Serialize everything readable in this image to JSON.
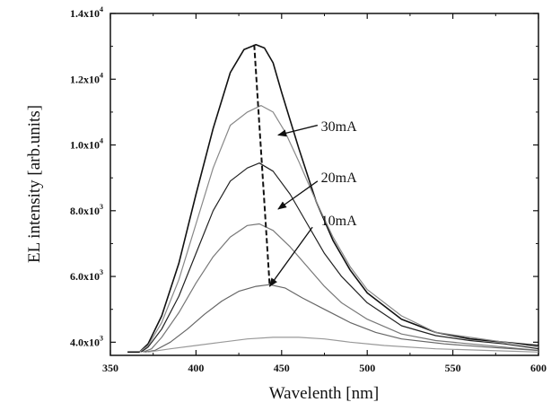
{
  "chart_data": {
    "type": "line",
    "xlabel": "Wavelenth [nm]",
    "ylabel": "EL intensity [arb.units]",
    "xlim": [
      350,
      600
    ],
    "ylim": [
      3600,
      14000
    ],
    "x_ticks": [
      350,
      400,
      450,
      500,
      550,
      600
    ],
    "y_ticks": [
      {
        "value": 4000,
        "mant": "4.0x10",
        "exp": "3"
      },
      {
        "value": 6000,
        "mant": "6.0x10",
        "exp": "3"
      },
      {
        "value": 8000,
        "mant": "8.0x10",
        "exp": "3"
      },
      {
        "value": 10000,
        "mant": "1.0x10",
        "exp": "4"
      },
      {
        "value": 12000,
        "mant": "1.2x10",
        "exp": "4"
      },
      {
        "value": 14000,
        "mant": "1.4x10",
        "exp": "4"
      }
    ],
    "grid": false,
    "series": [
      {
        "color": "#111111",
        "values": [
          [
            360,
            3700
          ],
          [
            367,
            3700
          ],
          [
            372,
            3950
          ],
          [
            380,
            4800
          ],
          [
            390,
            6400
          ],
          [
            400,
            8500
          ],
          [
            410,
            10500
          ],
          [
            420,
            12200
          ],
          [
            428,
            12900
          ],
          [
            435,
            13050
          ],
          [
            440,
            12950
          ],
          [
            445,
            12500
          ],
          [
            450,
            11600
          ],
          [
            460,
            9900
          ],
          [
            470,
            8300
          ],
          [
            480,
            7100
          ],
          [
            490,
            6200
          ],
          [
            500,
            5500
          ],
          [
            520,
            4700
          ],
          [
            540,
            4300
          ],
          [
            560,
            4100
          ],
          [
            580,
            4000
          ],
          [
            600,
            3900
          ]
        ]
      },
      {
        "color": "#888888",
        "values": [
          [
            367,
            3700
          ],
          [
            372,
            3900
          ],
          [
            380,
            4600
          ],
          [
            390,
            5900
          ],
          [
            400,
            7600
          ],
          [
            410,
            9300
          ],
          [
            420,
            10600
          ],
          [
            430,
            11000
          ],
          [
            438,
            11200
          ],
          [
            445,
            11000
          ],
          [
            452,
            10400
          ],
          [
            460,
            9500
          ],
          [
            470,
            8300
          ],
          [
            480,
            7200
          ],
          [
            490,
            6300
          ],
          [
            500,
            5600
          ],
          [
            520,
            4800
          ],
          [
            540,
            4300
          ],
          [
            560,
            4150
          ],
          [
            580,
            4000
          ],
          [
            600,
            3850
          ]
        ]
      },
      {
        "color": "#222222",
        "values": [
          [
            368,
            3700
          ],
          [
            372,
            3850
          ],
          [
            380,
            4400
          ],
          [
            390,
            5400
          ],
          [
            400,
            6700
          ],
          [
            410,
            8000
          ],
          [
            420,
            8900
          ],
          [
            430,
            9300
          ],
          [
            437,
            9450
          ],
          [
            445,
            9200
          ],
          [
            455,
            8500
          ],
          [
            465,
            7600
          ],
          [
            475,
            6700
          ],
          [
            485,
            6000
          ],
          [
            500,
            5200
          ],
          [
            520,
            4500
          ],
          [
            540,
            4200
          ],
          [
            560,
            4050
          ],
          [
            580,
            3950
          ],
          [
            600,
            3800
          ]
        ]
      },
      {
        "color": "#777777",
        "values": [
          [
            369,
            3700
          ],
          [
            374,
            3800
          ],
          [
            380,
            4150
          ],
          [
            390,
            4900
          ],
          [
            400,
            5800
          ],
          [
            410,
            6600
          ],
          [
            420,
            7200
          ],
          [
            430,
            7550
          ],
          [
            437,
            7600
          ],
          [
            445,
            7400
          ],
          [
            455,
            6900
          ],
          [
            465,
            6300
          ],
          [
            475,
            5700
          ],
          [
            485,
            5200
          ],
          [
            500,
            4700
          ],
          [
            520,
            4250
          ],
          [
            540,
            4050
          ],
          [
            560,
            3950
          ],
          [
            580,
            3850
          ],
          [
            600,
            3750
          ]
        ]
      },
      {
        "color": "#666666",
        "values": [
          [
            370,
            3700
          ],
          [
            376,
            3750
          ],
          [
            385,
            4000
          ],
          [
            395,
            4400
          ],
          [
            405,
            4850
          ],
          [
            415,
            5250
          ],
          [
            425,
            5550
          ],
          [
            435,
            5700
          ],
          [
            443,
            5750
          ],
          [
            452,
            5650
          ],
          [
            462,
            5350
          ],
          [
            475,
            5000
          ],
          [
            490,
            4600
          ],
          [
            505,
            4300
          ],
          [
            520,
            4100
          ],
          [
            545,
            3950
          ],
          [
            570,
            3850
          ],
          [
            600,
            3750
          ]
        ]
      },
      {
        "color": "#999999",
        "values": [
          [
            372,
            3700
          ],
          [
            385,
            3800
          ],
          [
            400,
            3900
          ],
          [
            415,
            4000
          ],
          [
            430,
            4100
          ],
          [
            445,
            4150
          ],
          [
            460,
            4150
          ],
          [
            475,
            4100
          ],
          [
            490,
            4000
          ],
          [
            510,
            3900
          ],
          [
            540,
            3800
          ],
          [
            570,
            3750
          ],
          [
            600,
            3700
          ]
        ]
      }
    ],
    "peak_trend": [
      [
        434,
        13050
      ],
      [
        443,
        5750
      ]
    ],
    "annotations": [
      {
        "text": "30mA",
        "label_at": [
          473,
          10560
        ],
        "arrow_from": [
          471,
          10600
        ],
        "arrow_to": [
          448,
          10300
        ]
      },
      {
        "text": "20mA",
        "label_at": [
          473,
          9000
        ],
        "arrow_from": [
          471,
          8900
        ],
        "arrow_to": [
          448,
          8050
        ]
      },
      {
        "text": "10mA",
        "label_at": [
          473,
          7700
        ],
        "arrow_from": [
          468,
          7500
        ],
        "arrow_to": [
          443,
          5700
        ]
      }
    ]
  }
}
